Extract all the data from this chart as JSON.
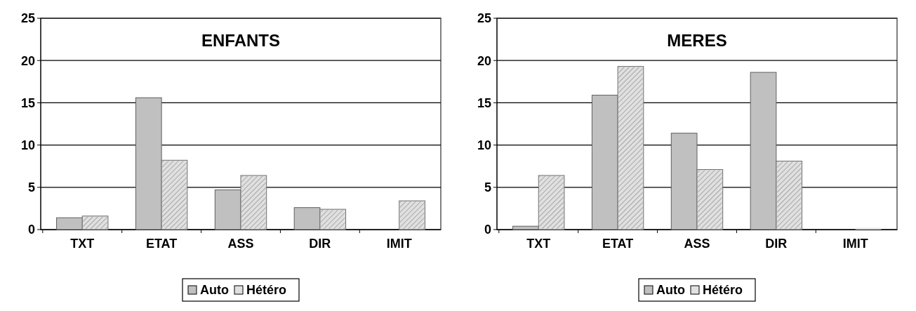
{
  "chart_data": [
    {
      "type": "bar",
      "title": "ENFANTS",
      "categories": [
        "TXT",
        "ETAT",
        "ASS",
        "DIR",
        "IMIT"
      ],
      "series": [
        {
          "name": "Auto",
          "color": "#c0c0c0",
          "values": [
            1.4,
            15.6,
            4.7,
            2.6,
            0
          ]
        },
        {
          "name": "Hétéro",
          "color": "#e0e0e0",
          "values": [
            1.6,
            8.2,
            6.4,
            2.4,
            3.4
          ]
        }
      ],
      "ylim": [
        0,
        25
      ],
      "yticks": [
        0,
        5,
        10,
        15,
        20,
        25
      ],
      "grid": "y",
      "legend": "bottom"
    },
    {
      "type": "bar",
      "title": "MERES",
      "categories": [
        "TXT",
        "ETAT",
        "ASS",
        "DIR",
        "IMIT"
      ],
      "series": [
        {
          "name": "Auto",
          "color": "#c0c0c0",
          "values": [
            0.4,
            15.9,
            11.4,
            18.6,
            0
          ]
        },
        {
          "name": "Hétéro",
          "color": "#e0e0e0",
          "values": [
            6.4,
            19.3,
            7.1,
            8.1,
            0.2
          ]
        }
      ],
      "ylim": [
        0,
        25
      ],
      "yticks": [
        0,
        5,
        10,
        15,
        20,
        25
      ],
      "grid": "y",
      "legend": "bottom"
    }
  ]
}
